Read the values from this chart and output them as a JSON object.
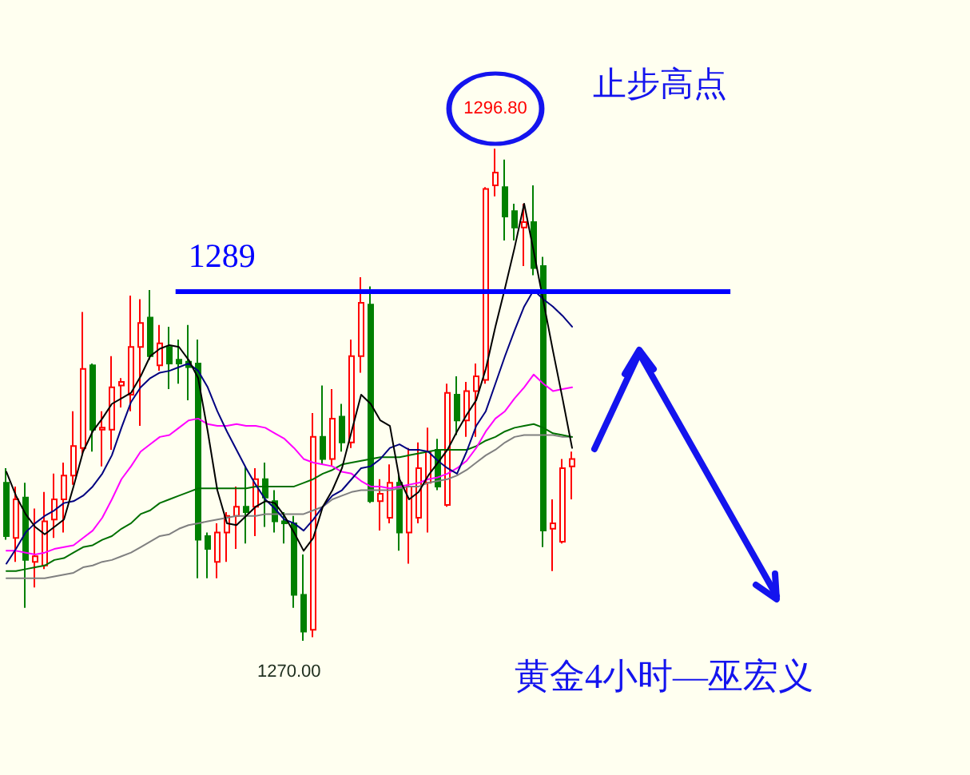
{
  "chart_data": {
    "type": "candlestick",
    "categories": [
      null,
      null,
      null,
      null,
      null,
      null,
      null,
      null,
      null,
      null,
      null,
      null,
      null,
      null,
      null,
      null,
      null,
      null,
      null,
      null,
      null,
      null,
      null,
      null,
      null,
      null,
      null,
      null,
      null,
      null,
      null,
      null,
      null,
      null,
      null,
      null,
      null,
      null,
      null,
      null,
      null,
      null,
      null,
      null,
      null,
      null,
      null,
      null,
      null,
      null,
      null,
      null,
      null,
      null,
      null,
      null,
      null,
      null,
      null,
      null
    ],
    "ohlc": [
      [
        1278.6,
        1279.4,
        1275.5,
        1275.7
      ],
      [
        1275.6,
        1278.4,
        1274.3,
        1277.7
      ],
      [
        1277.8,
        1278.6,
        1271.8,
        1274.4
      ],
      [
        1274.3,
        1277.2,
        1272.9,
        1274.6
      ],
      [
        1274.1,
        1278.1,
        1273.9,
        1276.5
      ],
      [
        1276.6,
        1279.1,
        1275.6,
        1277.7
      ],
      [
        1277.7,
        1279.7,
        1275.9,
        1279.0
      ],
      [
        1279.0,
        1282.5,
        1278.5,
        1280.6
      ],
      [
        1280.5,
        1287.9,
        1280.1,
        1284.8
      ],
      [
        1285.0,
        1285.1,
        1280.3,
        1281.5
      ],
      [
        1281.5,
        1282.5,
        1279.5,
        1281.6
      ],
      [
        1281.5,
        1285.5,
        1280.4,
        1283.8
      ],
      [
        1283.9,
        1284.3,
        1282.7,
        1284.1
      ],
      [
        1283.4,
        1288.8,
        1282.5,
        1286.0
      ],
      [
        1286.0,
        1288.6,
        1281.7,
        1287.3
      ],
      [
        1287.6,
        1289.1,
        1285.3,
        1285.5
      ],
      [
        1285.0,
        1287.2,
        1284.7,
        1286.2
      ],
      [
        1286.0,
        1287.1,
        1283.7,
        1285.1
      ],
      [
        1285.3,
        1286.4,
        1284.0,
        1285.1
      ],
      [
        1285.2,
        1287.2,
        1283.1,
        1284.9
      ],
      [
        1285.1,
        1286.4,
        1273.4,
        1275.5
      ],
      [
        1275.7,
        1275.9,
        1273.4,
        1275.0
      ],
      [
        1274.3,
        1276.4,
        1273.4,
        1275.9
      ],
      [
        1275.9,
        1277.0,
        1274.3,
        1276.8
      ],
      [
        1276.8,
        1278.4,
        1275.0,
        1277.3
      ],
      [
        1277.3,
        1279.5,
        1275.3,
        1277.0
      ],
      [
        1277.3,
        1279.4,
        1275.7,
        1278.8
      ],
      [
        1278.8,
        1279.7,
        1276.2,
        1277.8
      ],
      [
        1277.6,
        1278.2,
        1275.9,
        1276.5
      ],
      [
        1276.5,
        1277.0,
        1275.3,
        1276.4
      ],
      [
        1276.4,
        1276.8,
        1271.8,
        1272.5
      ],
      [
        1272.5,
        1274.7,
        1270.0,
        1270.5
      ],
      [
        1270.6,
        1282.4,
        1270.2,
        1281.1
      ],
      [
        1281.1,
        1283.9,
        1279.6,
        1279.9
      ],
      [
        1279.9,
        1283.7,
        1279.5,
        1282.1
      ],
      [
        1282.2,
        1282.9,
        1280.3,
        1280.8
      ],
      [
        1280.8,
        1286.4,
        1280.5,
        1285.5
      ],
      [
        1285.5,
        1289.8,
        1284.6,
        1288.4
      ],
      [
        1288.3,
        1289.3,
        1277.5,
        1277.6
      ],
      [
        1277.6,
        1278.8,
        1276.0,
        1278.0
      ],
      [
        1276.7,
        1279.6,
        1276.4,
        1278.6
      ],
      [
        1278.6,
        1279.0,
        1274.9,
        1275.9
      ],
      [
        1275.9,
        1280.5,
        1274.2,
        1278.4
      ],
      [
        1276.7,
        1280.8,
        1276.4,
        1279.4
      ],
      [
        1278.6,
        1281.6,
        1275.9,
        1280.3
      ],
      [
        1280.4,
        1281.0,
        1278.2,
        1278.4
      ],
      [
        1277.4,
        1284.0,
        1277.3,
        1283.5
      ],
      [
        1283.4,
        1284.4,
        1281.2,
        1282.0
      ],
      [
        1282.0,
        1284.1,
        1281.1,
        1283.6
      ],
      [
        1283.6,
        1285.1,
        1281.1,
        1284.4
      ],
      [
        1284.2,
        1294.7,
        1284.0,
        1294.6
      ],
      [
        1294.8,
        1296.8,
        1294.2,
        1295.5
      ],
      [
        1294.7,
        1296.2,
        1291.8,
        1293.1
      ],
      [
        1293.4,
        1293.8,
        1291.8,
        1292.5
      ],
      [
        1292.5,
        1293.8,
        1290.4,
        1292.8
      ],
      [
        1292.8,
        1294.8,
        1289.9,
        1290.3
      ],
      [
        1290.4,
        1290.9,
        1275.1,
        1276.0
      ],
      [
        1276.1,
        1277.7,
        1273.8,
        1276.4
      ],
      [
        1275.4,
        1279.9,
        1275.3,
        1279.4
      ],
      [
        1279.5,
        1280.3,
        1277.7,
        1279.9
      ]
    ],
    "colors": [
      "#008000",
      "#ff0000",
      "#008000",
      "#ff0000",
      "#ff0000",
      "#ff0000",
      "#ff0000",
      "#ff0000",
      "#ff0000",
      "#008000",
      "#ff0000",
      "#ff0000",
      "#ff0000",
      "#ff0000",
      "#ff0000",
      "#008000",
      "#ff0000",
      "#008000",
      "#008000",
      "#008000",
      "#008000",
      "#008000",
      "#ff0000",
      "#ff0000",
      "#ff0000",
      "#008000",
      "#ff0000",
      "#008000",
      "#008000",
      "#008000",
      "#008000",
      "#008000",
      "#ff0000",
      "#008000",
      "#ff0000",
      "#008000",
      "#ff0000",
      "#ff0000",
      "#008000",
      "#ff0000",
      "#ff0000",
      "#008000",
      "#ff0000",
      "#ff0000",
      "#ff0000",
      "#008000",
      "#ff0000",
      "#008000",
      "#ff0000",
      "#ff0000",
      "#ff0000",
      "#ff0000",
      "#008000",
      "#008000",
      "#ff0000",
      "#008000",
      "#008000",
      "#ff0000",
      "#ff0000",
      "#ff0000"
    ],
    "series": [
      {
        "type": "line",
        "color": "#808080",
        "values": [
          1273.4,
          1273.4,
          1273.4,
          1273.4,
          1273.4,
          1273.5,
          1273.6,
          1273.7,
          1274.0,
          1274.1,
          1274.3,
          1274.4,
          1274.6,
          1274.8,
          1275.1,
          1275.4,
          1275.7,
          1275.8,
          1276.1,
          1276.3,
          1276.4,
          1276.5,
          1276.6,
          1276.7,
          1276.8,
          1276.8,
          1276.8,
          1276.9,
          1276.9,
          1276.9,
          1276.9,
          1276.9,
          1277.1,
          1277.3,
          1277.7,
          1277.9,
          1278.1,
          1278.2,
          1278.2,
          1278.2,
          1278.2,
          1278.3,
          1278.4,
          1278.4,
          1278.6,
          1278.7,
          1278.8,
          1279.0,
          1279.3,
          1279.7,
          1280.1,
          1280.4,
          1280.8,
          1281.1,
          1281.2,
          1281.2,
          1281.2,
          1281.2,
          1281.1,
          1281.1
        ]
      },
      {
        "type": "line",
        "color": "#007000",
        "values": [
          1273.8,
          1273.8,
          1273.9,
          1274.0,
          1274.1,
          1274.4,
          1274.5,
          1274.8,
          1275.1,
          1275.2,
          1275.5,
          1275.7,
          1276.1,
          1276.4,
          1276.9,
          1277.1,
          1277.5,
          1277.7,
          1277.9,
          1278.1,
          1278.3,
          1278.3,
          1278.3,
          1278.3,
          1278.3,
          1278.3,
          1278.4,
          1278.4,
          1278.4,
          1278.4,
          1278.4,
          1278.6,
          1278.8,
          1279.1,
          1279.3,
          1279.6,
          1279.7,
          1279.8,
          1279.9,
          1280.0,
          1280.0,
          1280.0,
          1280.1,
          1280.2,
          1280.3,
          1280.4,
          1280.4,
          1280.4,
          1280.4,
          1280.6,
          1280.9,
          1281.1,
          1281.4,
          1281.6,
          1281.7,
          1281.8,
          1281.6,
          1281.3,
          1281.2,
          1281.1
        ]
      },
      {
        "type": "line",
        "color": "#ff00ff",
        "values": [
          1274.9,
          1274.9,
          1274.8,
          1274.7,
          1274.8,
          1275.0,
          1275.1,
          1275.2,
          1275.6,
          1276.0,
          1276.7,
          1277.7,
          1278.8,
          1279.5,
          1280.3,
          1280.7,
          1281.1,
          1281.2,
          1281.6,
          1282.0,
          1282.1,
          1281.8,
          1281.7,
          1281.7,
          1281.8,
          1281.7,
          1281.7,
          1281.6,
          1281.3,
          1281.0,
          1280.5,
          1279.9,
          1279.7,
          1279.6,
          1279.5,
          1279.2,
          1279.1,
          1278.7,
          1278.4,
          1278.4,
          1278.3,
          1278.4,
          1278.5,
          1278.6,
          1278.8,
          1278.9,
          1279.1,
          1279.4,
          1279.8,
          1280.5,
          1281.4,
          1282.1,
          1282.5,
          1283.2,
          1283.8,
          1284.5,
          1284.0,
          1283.6,
          1283.7,
          1283.8
        ]
      },
      {
        "type": "line",
        "color": "#000080",
        "values": [
          1274.2,
          1275.0,
          1275.9,
          1276.4,
          1276.8,
          1277.1,
          1277.5,
          1277.6,
          1277.9,
          1278.4,
          1279.1,
          1280.1,
          1281.6,
          1283.0,
          1283.8,
          1284.3,
          1284.6,
          1284.7,
          1284.9,
          1285.1,
          1284.7,
          1283.8,
          1282.5,
          1281.4,
          1280.4,
          1279.4,
          1278.5,
          1277.7,
          1277.2,
          1276.6,
          1276.4,
          1276.0,
          1276.6,
          1277.3,
          1277.9,
          1278.2,
          1278.8,
          1279.4,
          1279.5,
          1279.9,
          1280.5,
          1280.7,
          1280.4,
          1280.4,
          1280.3,
          1279.8,
          1279.4,
          1279.1,
          1280.3,
          1281.7,
          1282.5,
          1284.0,
          1285.5,
          1286.9,
          1288.2,
          1289.1,
          1288.6,
          1288.2,
          1287.7,
          1287.1
        ]
      },
      {
        "type": "line",
        "color": "#000000",
        "values": [
          1279.2,
          1277.9,
          1276.9,
          1276.2,
          1275.8,
          1276.2,
          1276.6,
          1278.4,
          1280.3,
          1281.4,
          1282.1,
          1282.9,
          1283.2,
          1283.5,
          1284.4,
          1285.5,
          1285.9,
          1286.1,
          1286.0,
          1285.3,
          1284.3,
          1281.4,
          1278.2,
          1276.4,
          1276.3,
          1276.8,
          1277.3,
          1277.6,
          1277.5,
          1276.8,
          1275.9,
          1274.9,
          1275.6,
          1277.3,
          1278.2,
          1279.4,
          1281.4,
          1283.4,
          1282.9,
          1282.0,
          1281.7,
          1278.8,
          1277.7,
          1278.1,
          1279.0,
          1279.7,
          1280.4,
          1281.4,
          1282.3,
          1283.1,
          1284.8,
          1287.1,
          1289.2,
          1291.4,
          1293.8,
          1291.2,
          1288.5,
          1285.8,
          1283.2,
          1280.5
        ]
      }
    ],
    "ref_lines": [
      {
        "axis": "y",
        "value": 1289,
        "label": "1289",
        "color": "#0000ff"
      }
    ],
    "annotations": [
      {
        "text": "1296.80",
        "y": 1296.8
      },
      "1270.00",
      "止步高点",
      "黄金4小时—巫宏义"
    ],
    "tick_labels": false
  }
}
